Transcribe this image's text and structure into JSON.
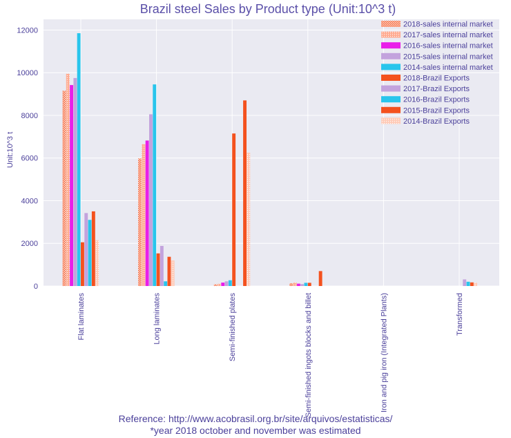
{
  "chart_data": {
    "type": "bar",
    "title": "Brazil steel Sales by Product type  (Unit:10^3 t)",
    "xlabel": "",
    "ylabel": "Unit:10^3 t",
    "ylim": [
      0,
      12500
    ],
    "yticks": [
      0,
      2000,
      4000,
      6000,
      8000,
      10000,
      12000
    ],
    "grid": true,
    "legend_position": "top-right",
    "categories": [
      "Flat laminates",
      "Long laminates",
      "Semi-finished plates",
      "Semi-finished ingots blocks and billet",
      "Iron and pig iron (Integrated Plants)",
      "Transformed"
    ],
    "series": [
      {
        "name": "2018-sales internal market",
        "color": "#f4511e",
        "pattern": "cross",
        "values": [
          9150,
          5980,
          80,
          130,
          0,
          0
        ]
      },
      {
        "name": "2017-sales internal market",
        "color": "#ffab91",
        "pattern": "dots",
        "values": [
          9950,
          6650,
          100,
          160,
          0,
          0
        ]
      },
      {
        "name": "2016-sales internal market",
        "color": "#e91ee9",
        "pattern": "solid",
        "values": [
          9420,
          6820,
          160,
          110,
          0,
          0
        ]
      },
      {
        "name": "2015-sales internal market",
        "color": "#c3a3dd",
        "pattern": "solid",
        "values": [
          9750,
          8050,
          220,
          90,
          0,
          0
        ]
      },
      {
        "name": "2014-sales internal market",
        "color": "#29c5ec",
        "pattern": "solid",
        "values": [
          11850,
          9450,
          270,
          150,
          0,
          0
        ]
      },
      {
        "name": "2018-Brazil Exports",
        "color": "#f4511e",
        "pattern": "solid",
        "values": [
          2050,
          1530,
          7150,
          150,
          0,
          0
        ]
      },
      {
        "name": "2017-Brazil Exports",
        "color": "#c3a3dd",
        "pattern": "solid",
        "values": [
          3420,
          1880,
          0,
          0,
          0,
          310
        ]
      },
      {
        "name": "2016-Brazil Exports",
        "color": "#29c5ec",
        "pattern": "solid",
        "values": [
          3100,
          220,
          0,
          0,
          0,
          200
        ]
      },
      {
        "name": "2015-Brazil Exports",
        "color": "#f4511e",
        "pattern": "solid",
        "values": [
          3500,
          1370,
          8700,
          700,
          0,
          170
        ]
      },
      {
        "name": "2014-Brazil Exports",
        "color": "#ffcbb8",
        "pattern": "dots",
        "values": [
          2150,
          1200,
          6250,
          0,
          0,
          150
        ]
      }
    ]
  },
  "footnote": {
    "line1": "Reference: http://www.acobrasil.org.br/site/arquivos/estatisticas/",
    "line2": "*year 2018 october and november was estimated"
  }
}
